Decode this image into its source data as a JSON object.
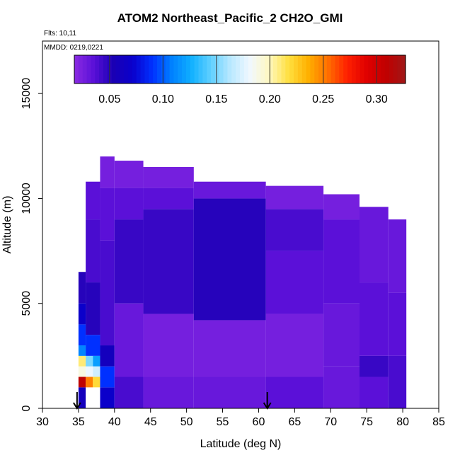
{
  "chart_data": {
    "type": "heatmap",
    "title": "ATOM2 Northeast_Pacific_2 CH2O_GMI",
    "flights_label": "Flts: 10,11",
    "mmdd_label": "MMDD: 0219,0221",
    "xlabel": "Latitude (deg N)",
    "ylabel": "Altitude (m)",
    "xlim": [
      30,
      85
    ],
    "ylim": [
      0,
      17500
    ],
    "x_ticks": [
      30,
      35,
      40,
      45,
      50,
      55,
      60,
      65,
      70,
      75,
      80,
      85
    ],
    "x_tick_labels": [
      "30",
      "35",
      "40",
      "45",
      "50",
      "55",
      "60",
      "65",
      "70",
      "75",
      "80",
      "85"
    ],
    "y_ticks": [
      0,
      5000,
      10000,
      15000
    ],
    "y_tick_labels": [
      "0",
      "5000",
      "10000",
      "15000"
    ],
    "colorbar": {
      "min": 0.017,
      "max": 0.327,
      "ticks": [
        0.05,
        0.1,
        0.15,
        0.2,
        0.25,
        0.3
      ],
      "tick_labels": [
        "0.05",
        "0.10",
        "0.15",
        "0.20",
        "0.25",
        "0.30"
      ],
      "colors": [
        "#8a2be2",
        "#5a10d8",
        "#1a00b4",
        "#0a00cc",
        "#0030ff",
        "#0080ff",
        "#10b0ff",
        "#60d0ff",
        "#b8e8ff",
        "#f0f8ff",
        "#fff8c0",
        "#ffe040",
        "#ffb000",
        "#ff7000",
        "#ff2000",
        "#e00000",
        "#c00000",
        "#a01818"
      ]
    },
    "arrows_latitude": [
      34.8,
      61.2
    ],
    "columns": [
      {
        "x0": 35.0,
        "x1": 36.0,
        "top": 2500,
        "cells": [
          {
            "y0": 0,
            "y1": 1000,
            "v": 0.06
          },
          {
            "y0": 1000,
            "y1": 1500,
            "v": 0.31
          },
          {
            "y0": 1500,
            "y1": 2000,
            "v": 0.19
          },
          {
            "y0": 2000,
            "y1": 2500,
            "v": 0.21
          }
        ]
      },
      {
        "x0": 36.0,
        "x1": 37.0,
        "top": 2500,
        "cells": [
          {
            "y0": 1000,
            "y1": 1500,
            "v": 0.25
          },
          {
            "y0": 1500,
            "y1": 2000,
            "v": 0.18
          },
          {
            "y0": 2000,
            "y1": 2500,
            "v": 0.15
          }
        ]
      },
      {
        "x0": 37.0,
        "x1": 38.0,
        "top": 2500,
        "cells": [
          {
            "y0": 1000,
            "y1": 1500,
            "v": 0.22
          },
          {
            "y0": 1500,
            "y1": 2000,
            "v": 0.17
          },
          {
            "y0": 2000,
            "y1": 2500,
            "v": 0.12
          }
        ]
      },
      {
        "x0": 35.0,
        "x1": 36.0,
        "top": 6500,
        "cells": [
          {
            "y0": 2500,
            "y1": 3000,
            "v": 0.11
          },
          {
            "y0": 3000,
            "y1": 4000,
            "v": 0.09
          },
          {
            "y0": 4000,
            "y1": 5000,
            "v": 0.07
          },
          {
            "y0": 5000,
            "y1": 6500,
            "v": 0.05
          }
        ]
      },
      {
        "x0": 36.0,
        "x1": 38.0,
        "top": 10800,
        "cells": [
          {
            "y0": 2500,
            "y1": 3500,
            "v": 0.09
          },
          {
            "y0": 3500,
            "y1": 6000,
            "v": 0.05
          },
          {
            "y0": 6000,
            "y1": 9000,
            "v": 0.04
          },
          {
            "y0": 9000,
            "y1": 10800,
            "v": 0.035
          }
        ]
      },
      {
        "x0": 38.0,
        "x1": 40.0,
        "top": 12000,
        "cells": [
          {
            "y0": 0,
            "y1": 1000,
            "v": 0.07
          },
          {
            "y0": 1000,
            "y1": 2000,
            "v": 0.09
          },
          {
            "y0": 2000,
            "y1": 3000,
            "v": 0.06
          },
          {
            "y0": 3000,
            "y1": 8000,
            "v": 0.04
          },
          {
            "y0": 8000,
            "y1": 10500,
            "v": 0.035
          },
          {
            "y0": 10500,
            "y1": 12000,
            "v": 0.025
          }
        ]
      },
      {
        "x0": 40.0,
        "x1": 44.0,
        "top": 11800,
        "cells": [
          {
            "y0": 0,
            "y1": 1500,
            "v": 0.04
          },
          {
            "y0": 1500,
            "y1": 5000,
            "v": 0.03
          },
          {
            "y0": 5000,
            "y1": 9000,
            "v": 0.045
          },
          {
            "y0": 9000,
            "y1": 10500,
            "v": 0.035
          },
          {
            "y0": 10500,
            "y1": 11800,
            "v": 0.025
          }
        ]
      },
      {
        "x0": 44.0,
        "x1": 51.0,
        "top": 11500,
        "cells": [
          {
            "y0": 0,
            "y1": 1500,
            "v": 0.03
          },
          {
            "y0": 1500,
            "y1": 4500,
            "v": 0.025
          },
          {
            "y0": 4500,
            "y1": 9500,
            "v": 0.045
          },
          {
            "y0": 9500,
            "y1": 10500,
            "v": 0.035
          },
          {
            "y0": 10500,
            "y1": 11500,
            "v": 0.025
          }
        ]
      },
      {
        "x0": 51.0,
        "x1": 61.0,
        "top": 10800,
        "cells": [
          {
            "y0": 0,
            "y1": 1500,
            "v": 0.03
          },
          {
            "y0": 1500,
            "y1": 4200,
            "v": 0.025
          },
          {
            "y0": 4200,
            "y1": 10000,
            "v": 0.05
          },
          {
            "y0": 10000,
            "y1": 10800,
            "v": 0.03
          }
        ]
      },
      {
        "x0": 61.0,
        "x1": 69.0,
        "top": 10600,
        "cells": [
          {
            "y0": 0,
            "y1": 1500,
            "v": 0.035
          },
          {
            "y0": 1500,
            "y1": 4500,
            "v": 0.025
          },
          {
            "y0": 4500,
            "y1": 7500,
            "v": 0.035
          },
          {
            "y0": 7500,
            "y1": 9500,
            "v": 0.04
          },
          {
            "y0": 9500,
            "y1": 10600,
            "v": 0.025
          }
        ]
      },
      {
        "x0": 69.0,
        "x1": 74.0,
        "top": 10200,
        "cells": [
          {
            "y0": 0,
            "y1": 2000,
            "v": 0.03
          },
          {
            "y0": 2000,
            "y1": 5000,
            "v": 0.03
          },
          {
            "y0": 5000,
            "y1": 9000,
            "v": 0.035
          },
          {
            "y0": 9000,
            "y1": 10200,
            "v": 0.025
          }
        ]
      },
      {
        "x0": 74.0,
        "x1": 78.0,
        "top": 9600,
        "cells": [
          {
            "y0": 0,
            "y1": 1500,
            "v": 0.035
          },
          {
            "y0": 1500,
            "y1": 2500,
            "v": 0.045
          },
          {
            "y0": 2500,
            "y1": 6000,
            "v": 0.035
          },
          {
            "y0": 6000,
            "y1": 9600,
            "v": 0.03
          }
        ]
      },
      {
        "x0": 78.0,
        "x1": 80.5,
        "top": 9000,
        "cells": [
          {
            "y0": 0,
            "y1": 2500,
            "v": 0.04
          },
          {
            "y0": 2500,
            "y1": 5500,
            "v": 0.035
          },
          {
            "y0": 5500,
            "y1": 9000,
            "v": 0.03
          }
        ]
      }
    ]
  }
}
